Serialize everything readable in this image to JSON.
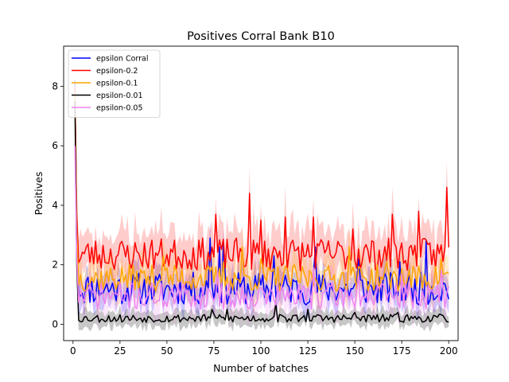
{
  "chart_data": {
    "type": "line",
    "title": "Positives Corral Bank B10",
    "xlabel": "Number of batches",
    "ylabel": "Positives",
    "xlim": [
      -5,
      205
    ],
    "ylim": [
      -0.55,
      9.35
    ],
    "xticks": [
      0,
      25,
      50,
      75,
      100,
      125,
      150,
      175,
      200
    ],
    "yticks": [
      0,
      2,
      4,
      6,
      8
    ],
    "grid": false,
    "legend_position": "top-left",
    "n_points": 200,
    "series": [
      {
        "name": "epsilon Corral",
        "color": "#0000ff",
        "start": 8.2,
        "level": 1.2,
        "amp": 0.55,
        "band": 0.45,
        "seed": 11,
        "peaks": [
          [
            73,
            2.9
          ],
          [
            78,
            2.6
          ],
          [
            80,
            2.7
          ],
          [
            107,
            2.3
          ],
          [
            129,
            2.6
          ],
          [
            152,
            2.2
          ],
          [
            174,
            2.1
          ],
          [
            188,
            2.8
          ],
          [
            199,
            1.1
          ]
        ]
      },
      {
        "name": "epsilon-0.2",
        "color": "#ff0000",
        "start": 8.0,
        "level": 2.35,
        "amp": 0.55,
        "band": 0.8,
        "seed": 23,
        "peaks": [
          [
            76,
            3.7
          ],
          [
            94,
            4.4
          ],
          [
            100,
            3.5
          ],
          [
            113,
            3.6
          ],
          [
            128,
            3.6
          ],
          [
            149,
            3.2
          ],
          [
            170,
            3.7
          ],
          [
            184,
            3.8
          ],
          [
            199,
            4.6
          ]
        ]
      },
      {
        "name": "epsilon-0.1",
        "color": "#ffa500",
        "start": 7.8,
        "level": 1.55,
        "amp": 0.45,
        "band": 0.6,
        "seed": 37,
        "peaks": [
          [
            48,
            2.3
          ],
          [
            80,
            2.1
          ],
          [
            90,
            2.6
          ],
          [
            100,
            2.2
          ],
          [
            147,
            2.6
          ],
          [
            167,
            2.1
          ],
          [
            196,
            2.2
          ]
        ]
      },
      {
        "name": "epsilon-0.01",
        "color": "#000000",
        "start": 7.5,
        "level": 0.2,
        "amp": 0.14,
        "band": 0.25,
        "seed": 53,
        "peaks": [
          [
            74,
            0.5
          ],
          [
            82,
            0.5
          ],
          [
            108,
            0.7
          ],
          [
            125,
            0.5
          ],
          [
            150,
            0.4
          ],
          [
            173,
            0.4
          ]
        ]
      },
      {
        "name": "epsilon-0.05",
        "color": "#ee82ee",
        "start": 6.0,
        "level": 0.95,
        "amp": 0.45,
        "band": 0.55,
        "seed": 71,
        "peaks": [
          [
            77,
            1.8
          ],
          [
            128,
            1.9
          ],
          [
            152,
            1.6
          ],
          [
            175,
            1.7
          ],
          [
            196,
            1.8
          ]
        ]
      }
    ]
  }
}
